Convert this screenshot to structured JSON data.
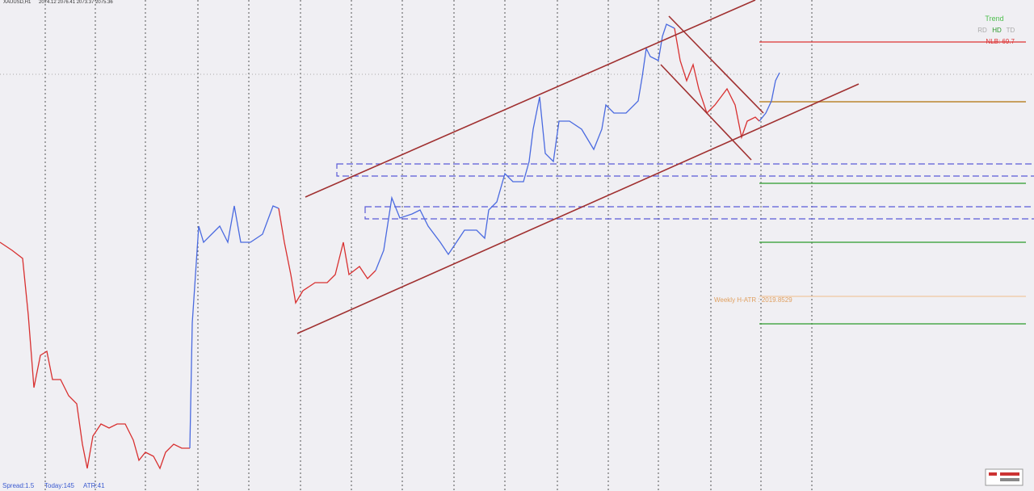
{
  "header": {
    "symbol": "XAUUSD,H1",
    "quote": "2074.12 2076.41 2073.37 2075.36"
  },
  "trend_panel": {
    "title": "Trend",
    "labels": [
      "RD",
      "HD",
      "TD"
    ],
    "level": "NLB: 69.7"
  },
  "weekly_atr": "Weekly H-ATR : 2019.8529",
  "status": {
    "spread": "Spread:1.5",
    "today": "Today:145",
    "atr": "ATR:41"
  }
}
